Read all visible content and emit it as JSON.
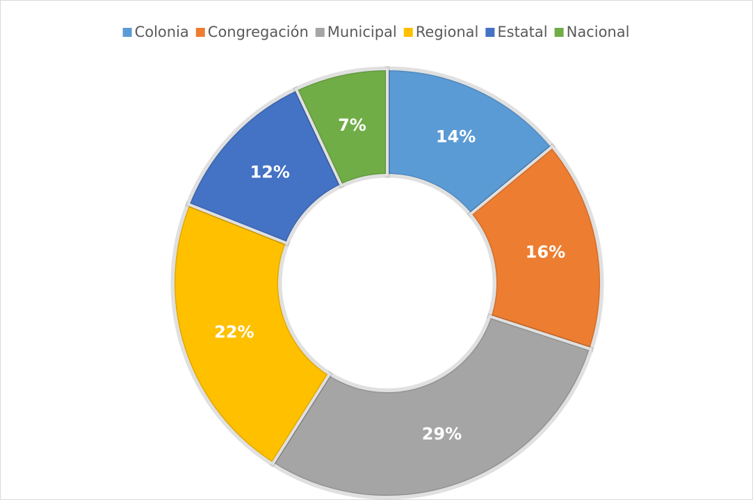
{
  "chart_data": {
    "type": "donut",
    "categories": [
      "Colonia",
      "Congregación",
      "Municipal",
      "Regional",
      "Estatal",
      "Nacional"
    ],
    "values": [
      14,
      16,
      29,
      22,
      12,
      7
    ],
    "value_labels": [
      "14%",
      "16%",
      "29%",
      "22%",
      "12%",
      "7%"
    ],
    "colors": [
      "#5b9bd5",
      "#ed7d31",
      "#a5a5a5",
      "#ffc000",
      "#4472c4",
      "#70ad47"
    ],
    "legend": "top"
  }
}
